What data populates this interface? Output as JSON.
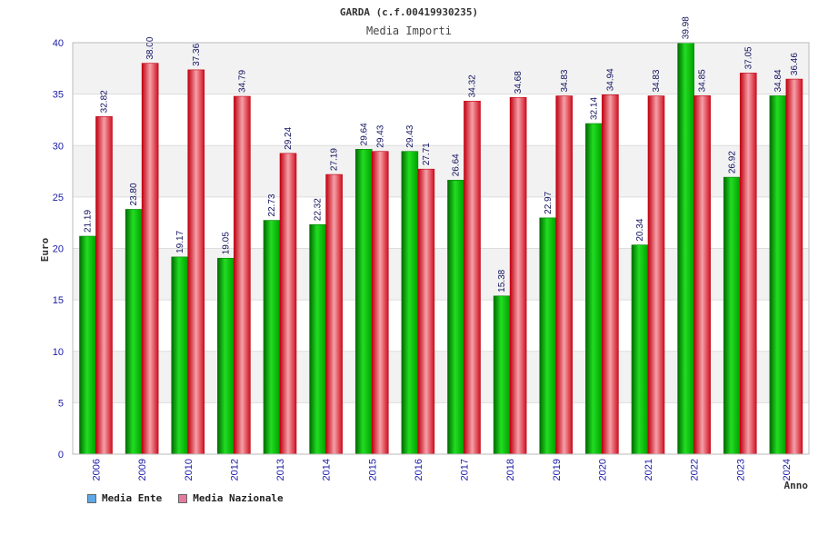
{
  "chart_data": {
    "type": "bar",
    "title": "GARDA (c.f.00419930235)",
    "subtitle": "Media Importi",
    "ylabel": "Euro",
    "xlabel": "Anno",
    "ylim": [
      0,
      40
    ],
    "yticks": [
      0,
      5,
      10,
      15,
      20,
      25,
      30,
      35,
      40
    ],
    "categories": [
      "2006",
      "2009",
      "2010",
      "2012",
      "2013",
      "2014",
      "2015",
      "2016",
      "2017",
      "2018",
      "2019",
      "2020",
      "2021",
      "2022",
      "2023",
      "2024"
    ],
    "series": [
      {
        "name": "Media Ente",
        "color": "#00b000",
        "legend_color": "#5fa8e8",
        "values": [
          21.19,
          23.8,
          19.17,
          19.05,
          22.73,
          22.32,
          29.64,
          29.43,
          26.64,
          15.38,
          22.97,
          32.14,
          20.34,
          39.98,
          26.92,
          34.84
        ],
        "labels": [
          "21.19",
          "23.80",
          "19.17",
          "19.05",
          "22.73",
          "22.32",
          "29.64",
          "29.43",
          "26.64",
          "15.38",
          "22.97",
          "32.14",
          "20.34",
          "39.98",
          "26.92",
          "34.84"
        ]
      },
      {
        "name": "Media Nazionale",
        "color": "#e01020",
        "legend_color": "#e57aa0",
        "values": [
          32.82,
          38.0,
          37.36,
          34.79,
          29.24,
          27.19,
          29.43,
          27.71,
          34.32,
          34.68,
          34.83,
          34.94,
          34.83,
          34.85,
          37.05,
          36.46
        ],
        "labels": [
          "32.82",
          "38.00",
          "37.36",
          "34.79",
          "29.24",
          "27.19",
          "29.43",
          "27.71",
          "34.32",
          "34.68",
          "34.83",
          "34.94",
          "34.83",
          "34.85",
          "37.05",
          "36.46"
        ]
      }
    ],
    "grid": true,
    "legend_position": "bottom-left"
  }
}
